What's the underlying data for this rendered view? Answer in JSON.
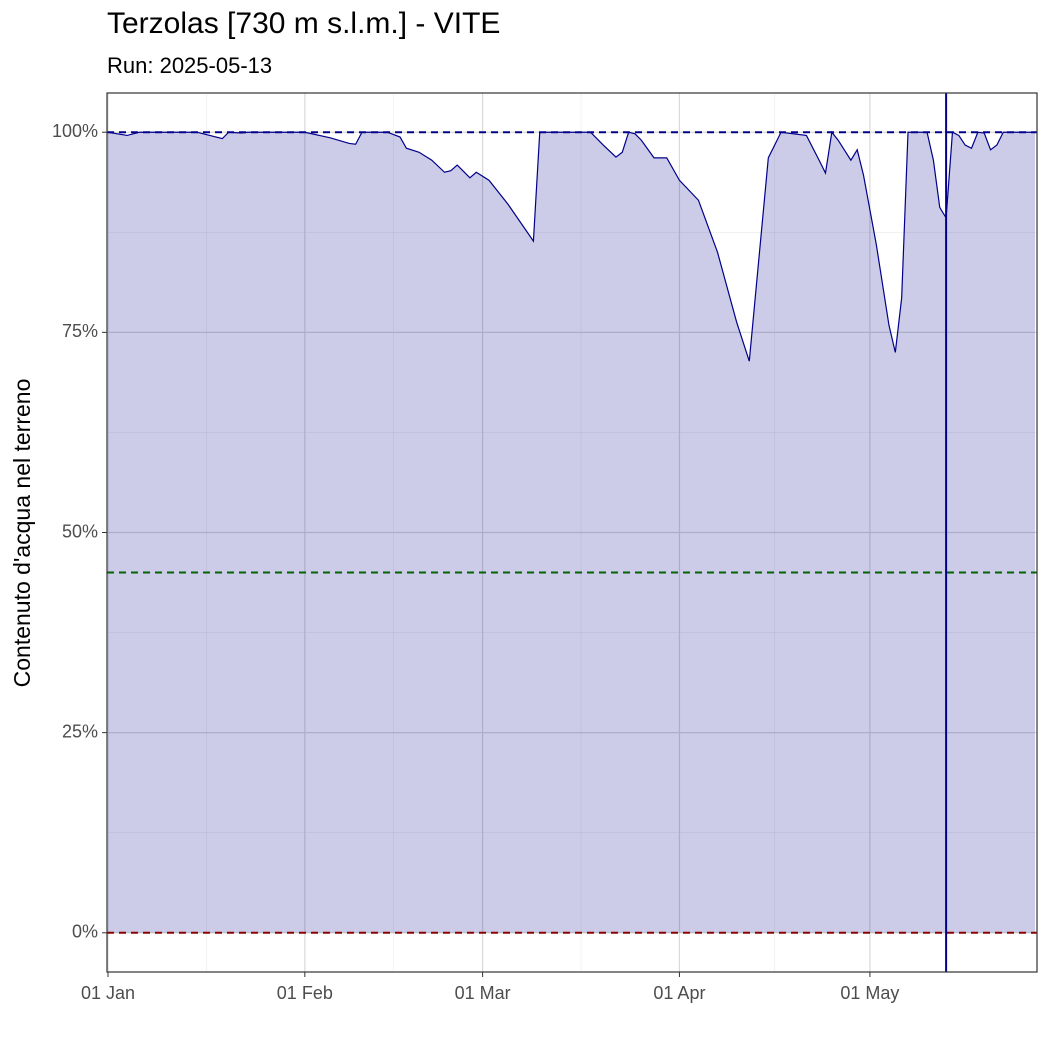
{
  "chart_data": {
    "type": "area",
    "title": "Terzolas [730 m s.l.m.] - VITE",
    "subtitle": "Run: 2025-05-13",
    "ylabel": "Contenuto d'acqua nel terreno",
    "x": [
      "01-01",
      "01-04",
      "01-06",
      "01-15",
      "01-19",
      "01-20",
      "01-22",
      "01-23",
      "02-01",
      "02-05",
      "02-08",
      "02-09",
      "02-10",
      "02-14",
      "02-16",
      "02-17",
      "02-19",
      "02-21",
      "02-23",
      "02-24",
      "02-25",
      "02-27",
      "02-28",
      "03-02",
      "03-05",
      "03-09",
      "03-10",
      "03-18",
      "03-20",
      "03-22",
      "03-23",
      "03-24",
      "03-25",
      "03-26",
      "03-28",
      "03-30",
      "04-01",
      "04-04",
      "04-07",
      "04-10",
      "04-12",
      "04-15",
      "04-17",
      "04-21",
      "04-23",
      "04-24",
      "04-25",
      "04-26",
      "04-28",
      "04-29",
      "04-30",
      "05-02",
      "05-04",
      "05-05",
      "05-06",
      "05-07",
      "05-10",
      "05-11",
      "05-12",
      "05-13",
      "05-14",
      "05-15",
      "05-16",
      "05-17",
      "05-18",
      "05-19",
      "05-20",
      "05-21",
      "05-22",
      "05-27"
    ],
    "values": [
      100,
      99.6,
      100,
      100,
      99.2,
      100,
      99.9,
      100,
      100,
      99.3,
      98.6,
      98.5,
      100,
      100,
      99.4,
      98,
      97.5,
      96.5,
      95,
      95.2,
      95.9,
      94.3,
      95,
      94,
      91,
      86.4,
      100,
      100,
      98.4,
      96.9,
      97.5,
      100,
      99.8,
      99,
      96.8,
      96.8,
      94,
      91.5,
      85,
      76.3,
      71.4,
      96.8,
      100,
      99.6,
      96.5,
      94.9,
      100,
      99,
      96.5,
      97.8,
      94.6,
      86,
      75.9,
      72.5,
      79.3,
      100,
      100,
      96.5,
      90.6,
      89.3,
      100,
      99.6,
      98.4,
      98,
      100,
      99.9,
      97.8,
      98.4,
      100,
      100
    ],
    "color": "#00008b",
    "fill": "rgba(0,0,139,0.2)",
    "xlim": [
      "01-01",
      "05-27"
    ],
    "xticks": [
      {
        "value": "01-01",
        "label": "01 Jan"
      },
      {
        "value": "02-01",
        "label": "01 Feb"
      },
      {
        "value": "03-01",
        "label": "01 Mar"
      },
      {
        "value": "04-01",
        "label": "01 Apr"
      },
      {
        "value": "05-01",
        "label": "01 May"
      }
    ],
    "ylim": [
      -4.9,
      104.9
    ],
    "yticks": [
      {
        "value": 0,
        "label": "0%"
      },
      {
        "value": 25,
        "label": "25%"
      },
      {
        "value": 50,
        "label": "50%"
      },
      {
        "value": 75,
        "label": "75%"
      },
      {
        "value": 100,
        "label": "100%"
      }
    ],
    "grid": true,
    "hlines": [
      {
        "value": 100,
        "color": "#00008b"
      },
      {
        "value": 45,
        "color": "#006400"
      },
      {
        "value": 0,
        "color": "#8b0000"
      }
    ],
    "vline": {
      "value": "05-13",
      "color": "#00008b"
    }
  }
}
